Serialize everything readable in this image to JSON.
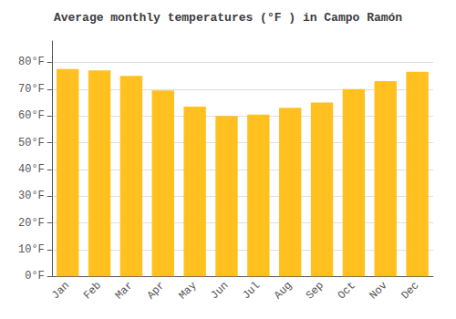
{
  "chart_data": {
    "type": "bar",
    "title": "Average monthly temperatures (°F ) in Campo Ramón",
    "categories": [
      "Jan",
      "Feb",
      "Mar",
      "Apr",
      "May",
      "Jun",
      "Jul",
      "Aug",
      "Sep",
      "Oct",
      "Nov",
      "Dec"
    ],
    "values": [
      77.5,
      77.0,
      75.0,
      69.5,
      63.5,
      60.0,
      60.5,
      63.0,
      65.0,
      70.0,
      73.0,
      76.5
    ],
    "color": "#FFC020",
    "ylim": [
      0,
      88
    ],
    "yticks": [
      {
        "value": 0,
        "label": "0°F"
      },
      {
        "value": 10,
        "label": "10°F"
      },
      {
        "value": 20,
        "label": "20°F"
      },
      {
        "value": 30,
        "label": "30°F"
      },
      {
        "value": 40,
        "label": "40°F"
      },
      {
        "value": 50,
        "label": "50°F"
      },
      {
        "value": 60,
        "label": "60°F"
      },
      {
        "value": 70,
        "label": "70°F"
      },
      {
        "value": 80,
        "label": "80°F"
      }
    ],
    "grid": true
  }
}
